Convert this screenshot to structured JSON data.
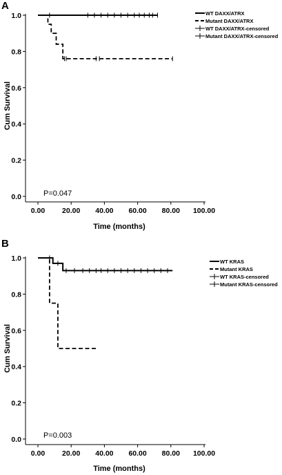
{
  "chart_data": [
    {
      "type": "line",
      "panel_label": "A",
      "xlabel": "Time (months)",
      "ylabel": "Cum Survival",
      "xlim": [
        0,
        100
      ],
      "ylim": [
        0,
        1.0
      ],
      "xticks": [
        "0.00",
        "20.00",
        "40.00",
        "60.00",
        "80.00",
        "100.00"
      ],
      "yticks": [
        "0.0",
        "0.2",
        "0.4",
        "0.6",
        "0.8",
        "1.0"
      ],
      "annotation": "P=0.047",
      "legend_position": "top-right",
      "legend": [
        "WT DAXX/ATRX",
        "Mutant DAXX/ATRX",
        "WT DAXX/ATRX-censored",
        "Mutant DAXX/ATRX-censored"
      ],
      "series": [
        {
          "name": "WT DAXX/ATRX",
          "style": "solid",
          "steps": [
            [
              0,
              1.0
            ],
            [
              72,
              1.0
            ]
          ],
          "censored": [
            7,
            30,
            34,
            38,
            42,
            46,
            50,
            54,
            58,
            61,
            64,
            67,
            69,
            72
          ]
        },
        {
          "name": "Mutant DAXX/ATRX",
          "style": "dashed",
          "steps": [
            [
              0,
              1.0
            ],
            [
              6,
              0.95
            ],
            [
              8,
              0.9
            ],
            [
              11,
              0.84
            ],
            [
              15,
              0.76
            ],
            [
              81,
              0.76
            ]
          ],
          "censored": [
            16,
            17,
            35,
            37,
            81
          ]
        }
      ]
    },
    {
      "type": "line",
      "panel_label": "B",
      "xlabel": "Time (months)",
      "ylabel": "Cum Survival",
      "xlim": [
        0,
        100
      ],
      "ylim": [
        0,
        1.0
      ],
      "xticks": [
        "0.00",
        "20.00",
        "40.00",
        "60.00",
        "80.00",
        "100.00"
      ],
      "yticks": [
        "0.0",
        "0.2",
        "0.4",
        "0.6",
        "0.8",
        "1.0"
      ],
      "annotation": "P=0.003",
      "legend_position": "top-right",
      "legend": [
        "WT KRAS",
        "Mutant KRAS",
        "WT KRAS-censored",
        "Mutant KRAS-censored"
      ],
      "series": [
        {
          "name": "WT KRAS",
          "style": "solid",
          "steps": [
            [
              0,
              1.0
            ],
            [
              9,
              0.97
            ],
            [
              15,
              0.93
            ],
            [
              81,
              0.93
            ]
          ],
          "censored": [
            7,
            12,
            17,
            22,
            27,
            31,
            35,
            38,
            42,
            46,
            50,
            54,
            58,
            62,
            66,
            70,
            74,
            78
          ]
        },
        {
          "name": "Mutant KRAS",
          "style": "dashed",
          "steps": [
            [
              0,
              1.0
            ],
            [
              7,
              0.75
            ],
            [
              12,
              0.5
            ],
            [
              35,
              0.5
            ]
          ],
          "censored": []
        }
      ]
    }
  ]
}
